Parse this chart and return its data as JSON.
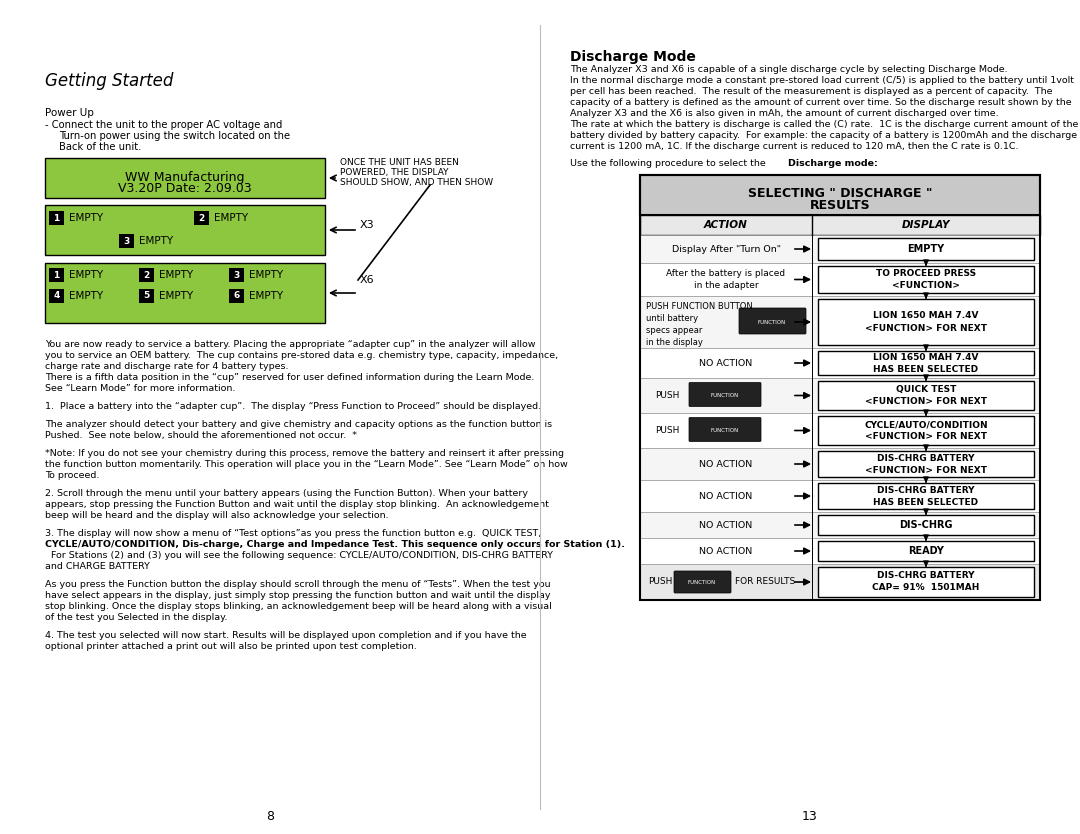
{
  "page_bg": "#ffffff",
  "left_page_num": "8",
  "right_page_num": "13",
  "title_left": "Getting Started",
  "green_color": "#8dc63f",
  "green_box1_line1": "WW Manufacturing",
  "green_box1_line2": "V3.20P Date: 2.09.03",
  "annotation_text": [
    "ONCE THE UNIT HAS BEEN",
    "POWERED, THE DISPLAY",
    "SHOULD SHOW, AND THEN SHOW"
  ],
  "label_x3": "X3",
  "label_x6": "X6",
  "discharge_mode_title": "Discharge Mode",
  "table_title_line1": "SELECTING \" DISCHARGE \"",
  "table_title_line2": "RESULTS",
  "table_title_bg": "#d0d0d0",
  "table_header_action": "ACTION",
  "table_header_display": "DISPLAY",
  "table_rows": [
    {
      "action": "Display After \"Turn On\"",
      "display": "EMPTY",
      "has_button": false
    },
    {
      "action": "After the battery is placed\nin the adapter",
      "display": "TO PROCEED PRESS\n<FUNCTION>",
      "has_button": false
    },
    {
      "action": "PUSH FUNCTION BUTTON\nuntil battery\nspecs appear\nin the display",
      "display": "LION 1650 MAH 7.4V\n<FUNCTION> FOR NEXT",
      "has_button": true
    },
    {
      "action": "NO ACTION",
      "display": "LION 1650 MAH 7.4V\nHAS BEEN SELECTED",
      "has_button": false
    },
    {
      "action": "PUSH",
      "display": "QUICK TEST\n<FUNCTION> FOR NEXT",
      "has_button": true
    },
    {
      "action": "PUSH",
      "display": "CYCLE/AUTO/CONDITION\n<FUNCTION> FOR NEXT",
      "has_button": true
    },
    {
      "action": "NO ACTION",
      "display": "DIS-CHRG BATTERY\n<FUNCTION> FOR NEXT",
      "has_button": false
    },
    {
      "action": "NO ACTION",
      "display": "DIS-CHRG BATTERY\nHAS BEEN SELECTED",
      "has_button": false
    },
    {
      "action": "NO ACTION",
      "display": "DIS-CHRG",
      "has_button": false
    },
    {
      "action": "NO ACTION",
      "display": "READY",
      "has_button": false
    },
    {
      "action": "PUSH_RESULTS",
      "display": "DIS-CHRG BATTERY\nCAP= 91%  1501MAH",
      "has_button": true,
      "is_last": true
    }
  ]
}
